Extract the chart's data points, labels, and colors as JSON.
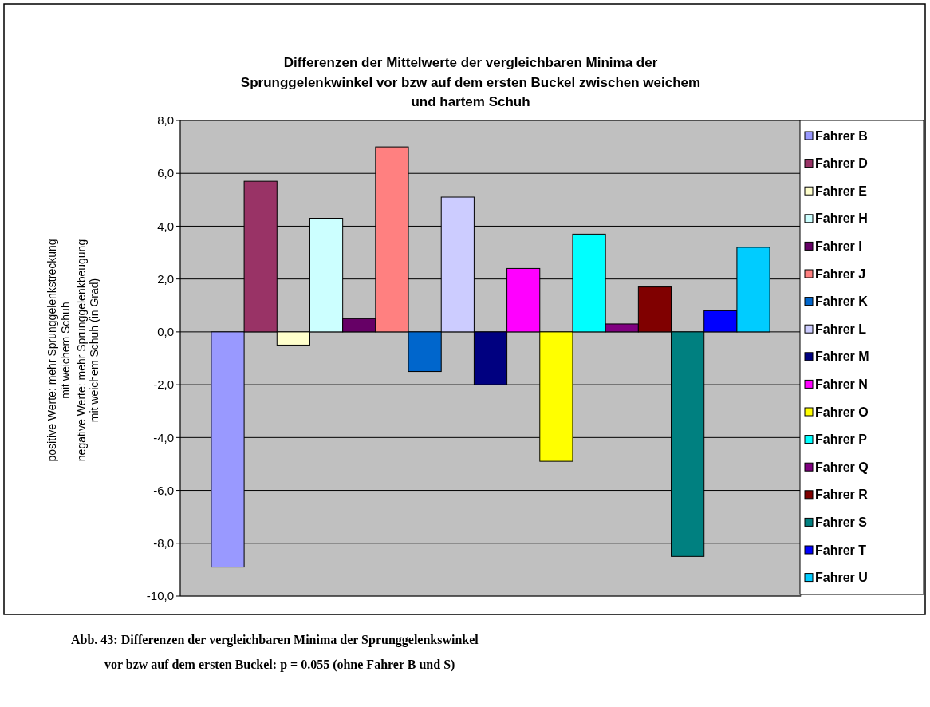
{
  "chart_data": {
    "type": "bar",
    "title": "Differenzen der Mittelwerte der vergleichbaren Minima der\nSprunggelenkwinkel vor bzw auf dem ersten Buckel zwischen weichem\nund hartem Schuh",
    "ylabel": "positive Werte: mehr Sprunggelenkstreckung\nmit weichem Schuh\nnegative Werte: mehr Sprunggelenkbeugung\nmit weichem Schuh (in Grad)",
    "annotations": [
      "Abb. 43: Differenzen der vergleichbaren Minima der Sprunggelenkswinkel\nvor bzw auf dem ersten Buckel: p = 0.055 (ohne Fahrer B und S)"
    ],
    "categories": [
      null
    ],
    "series": [
      {
        "name": "Fahrer B",
        "color": "#9999ff",
        "values": [
          -8.9
        ]
      },
      {
        "name": "Fahrer D",
        "color": "#993366",
        "values": [
          5.7
        ]
      },
      {
        "name": "Fahrer E",
        "color": "#ffffcc",
        "values": [
          -0.5
        ]
      },
      {
        "name": "Fahrer H",
        "color": "#ccffff",
        "values": [
          4.3
        ]
      },
      {
        "name": "Fahrer I",
        "color": "#660066",
        "values": [
          0.5
        ]
      },
      {
        "name": "Fahrer J",
        "color": "#ff8080",
        "values": [
          7.0
        ]
      },
      {
        "name": "Fahrer K",
        "color": "#0066cc",
        "values": [
          -1.5
        ]
      },
      {
        "name": "Fahrer L",
        "color": "#ccccff",
        "values": [
          5.1
        ]
      },
      {
        "name": "Fahrer M",
        "color": "#000080",
        "values": [
          -2.0
        ]
      },
      {
        "name": "Fahrer N",
        "color": "#ff00ff",
        "values": [
          2.4
        ]
      },
      {
        "name": "Fahrer O",
        "color": "#ffff00",
        "values": [
          -4.9
        ]
      },
      {
        "name": "Fahrer P",
        "color": "#00ffff",
        "values": [
          3.7
        ]
      },
      {
        "name": "Fahrer Q",
        "color": "#800080",
        "values": [
          0.3
        ]
      },
      {
        "name": "Fahrer R",
        "color": "#800000",
        "values": [
          1.7
        ]
      },
      {
        "name": "Fahrer S",
        "color": "#008080",
        "values": [
          -8.5
        ]
      },
      {
        "name": "Fahrer T",
        "color": "#0000ff",
        "values": [
          0.8
        ]
      },
      {
        "name": "Fahrer U",
        "color": "#00ccff",
        "values": [
          3.2
        ]
      }
    ],
    "ylim": [
      -10,
      8
    ],
    "yticks": [
      {
        "value": 8,
        "label": "8,0"
      },
      {
        "value": 6,
        "label": "6,0"
      },
      {
        "value": 4,
        "label": "4,0"
      },
      {
        "value": 2,
        "label": "2,0"
      },
      {
        "value": 0,
        "label": "0,0"
      },
      {
        "value": -2,
        "label": "-2,0"
      },
      {
        "value": -4,
        "label": "-4,0"
      },
      {
        "value": -6,
        "label": "-6,0"
      },
      {
        "value": -8,
        "label": "-8,0"
      },
      {
        "value": -10,
        "label": "-10,0"
      }
    ],
    "grid": "y",
    "legend": "right"
  }
}
